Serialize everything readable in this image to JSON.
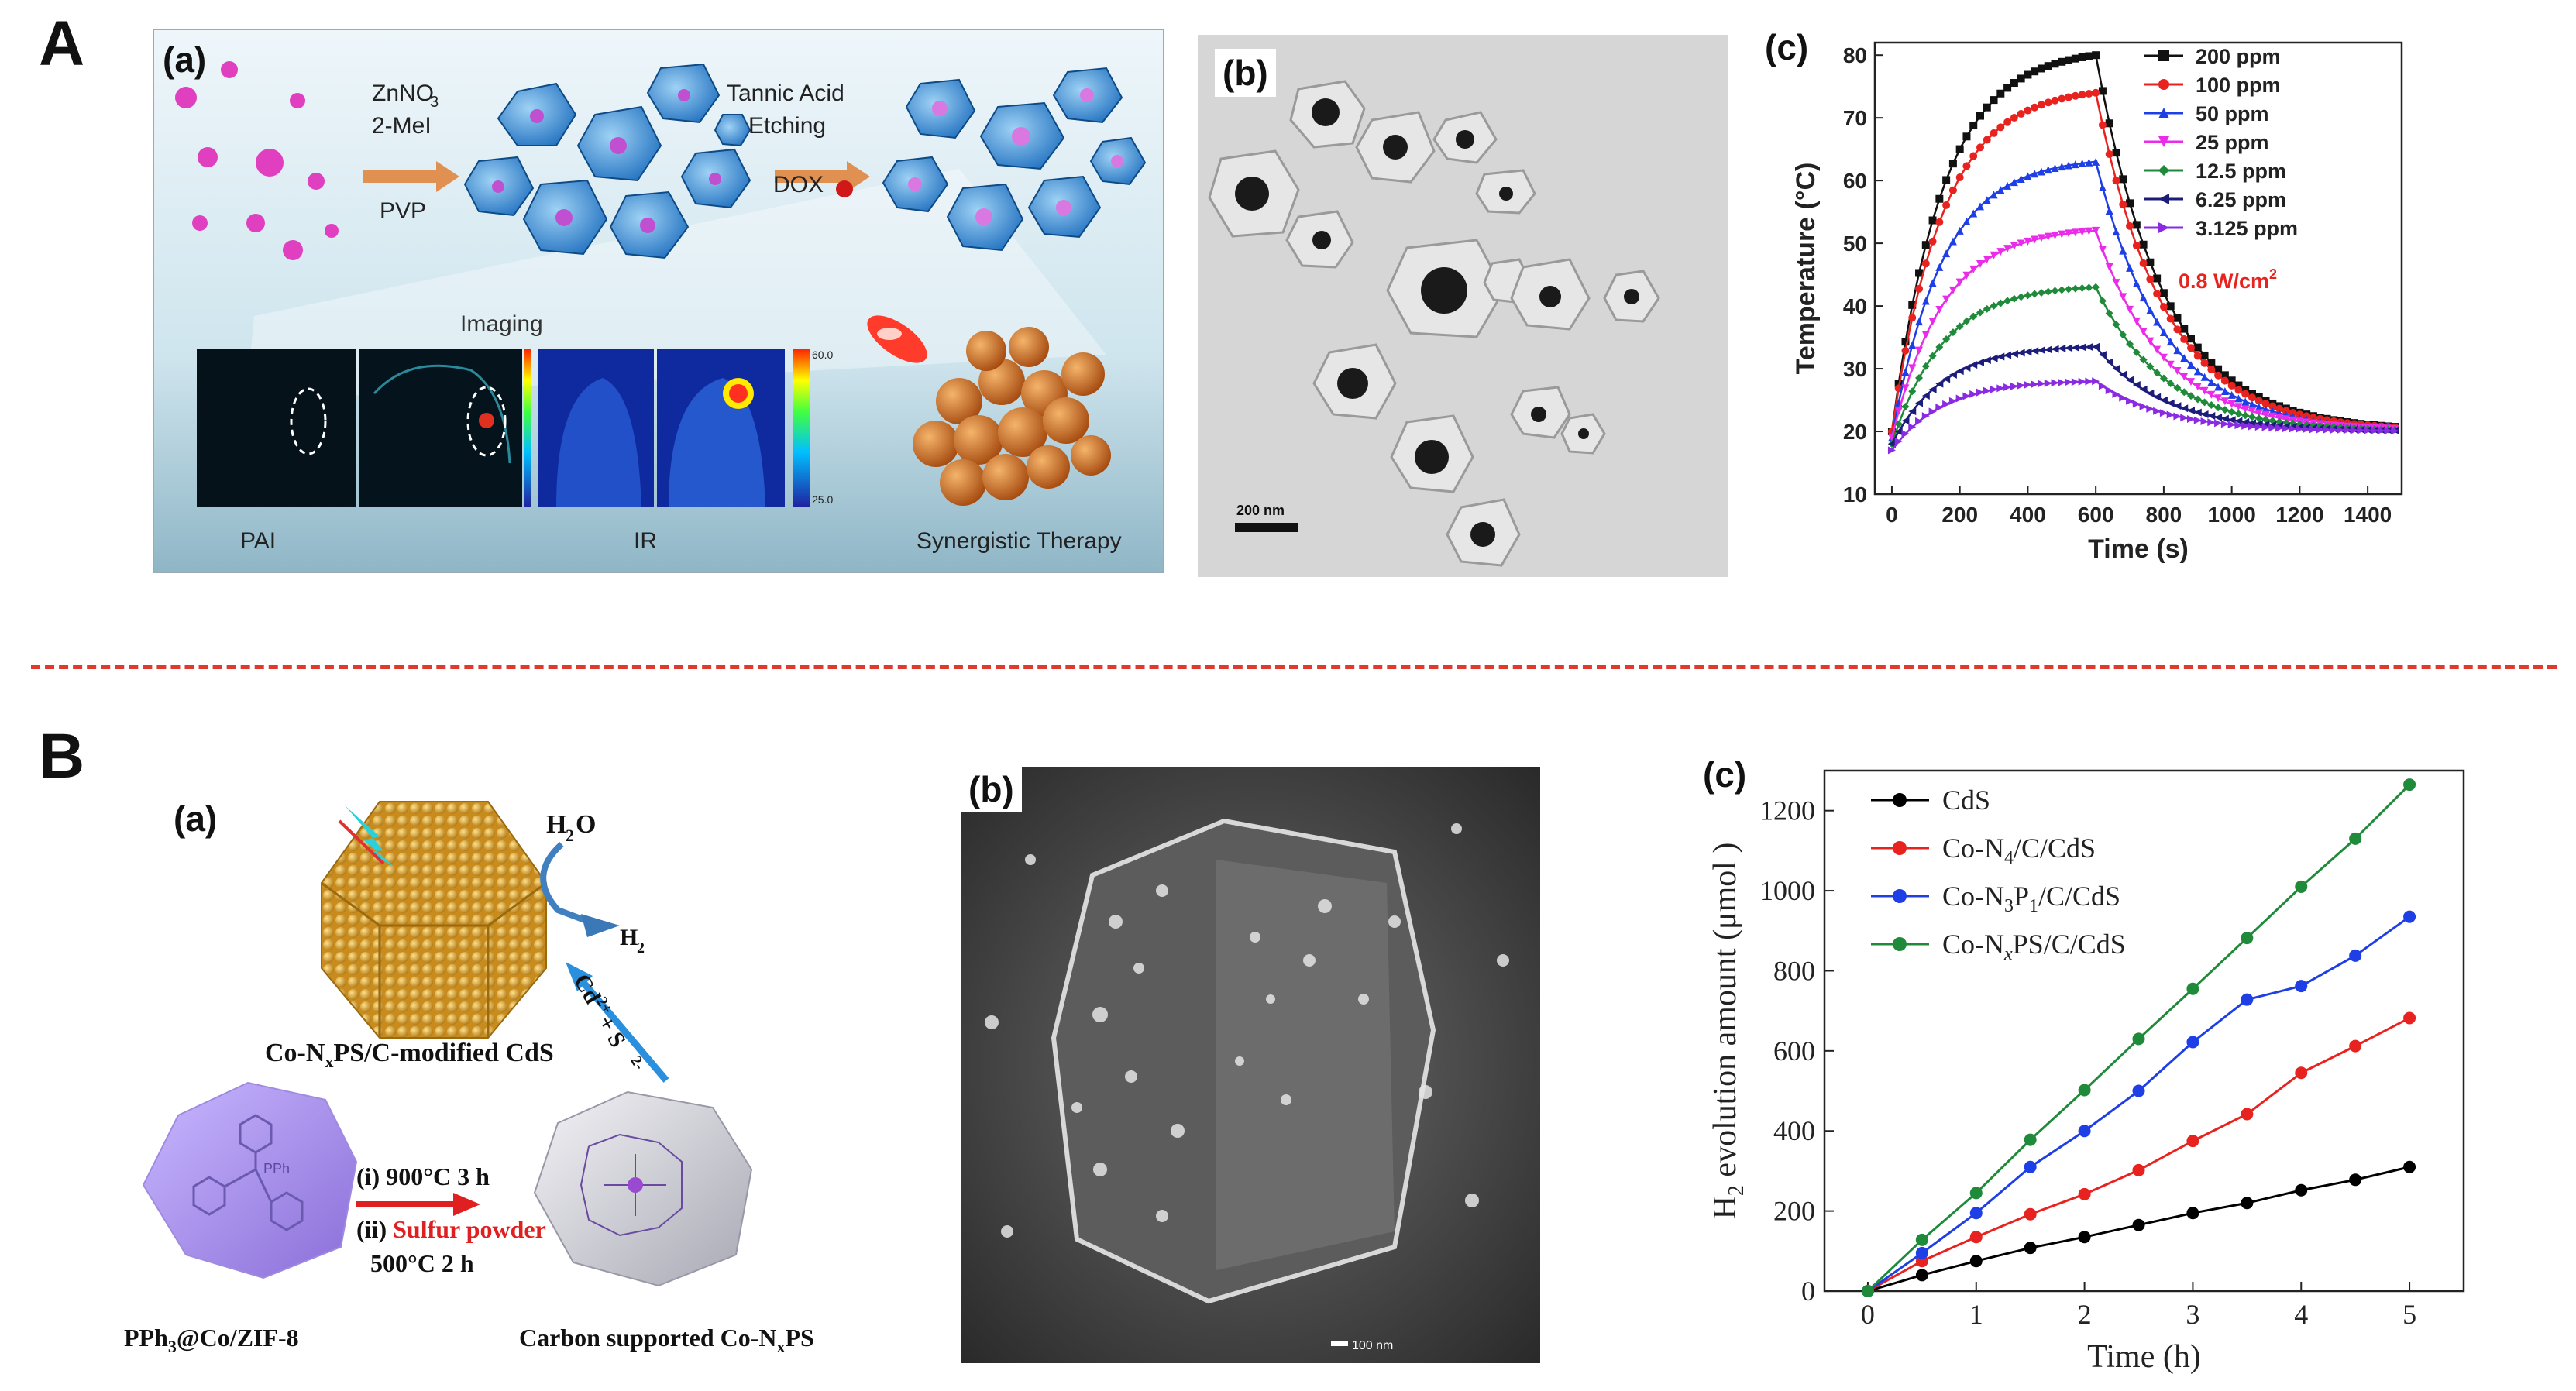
{
  "section_A": {
    "letter": "A",
    "panel_a": {
      "label": "(a)",
      "step1_line1": "ZnNO",
      "step1_sub": "3",
      "step1_line2": "2-MeI",
      "step1_line3": "PVP",
      "step2_line1": "Tannic Acid",
      "step2_line2": "Etching",
      "step2_line3": "DOX",
      "imaging": "Imaging",
      "pai": "PAI",
      "ir": "IR",
      "therapy": "Synergistic Therapy",
      "scale_top": "60.0",
      "scale_bottom": "25.0"
    },
    "panel_b": {
      "label": "(b)",
      "scalebar": "200 nm"
    },
    "panel_c": {
      "label": "(c)",
      "power": "0.8 W/cm",
      "power_sup": "2"
    }
  },
  "section_B": {
    "letter": "B",
    "panel_a": {
      "label": "(a)",
      "h2o": "H",
      "h2o_sub": "2",
      "h2o_tail": "O",
      "h2": "H",
      "h2_sub": "2",
      "ions": "Cd",
      "ions_sup": "2+",
      "ions_mid": " + S",
      "ions_sup2": "2-",
      "top_caption_pre": "Co-N",
      "top_caption_sub": "x",
      "top_caption_post": "PS/C-modified CdS",
      "ppph3": "PPh",
      "step_i": "(i) 900°C  3 h",
      "step_ii_pre": "(ii) ",
      "step_ii_red": "Sulfur powder",
      "step_ii_post": "500°C  2 h",
      "left_caption_pre": "PPh",
      "left_caption_sub": "3",
      "left_caption_post": "@Co/ZIF-8",
      "right_caption_pre": "Carbon supported Co-N",
      "right_caption_sub": "x",
      "right_caption_post": "PS"
    },
    "panel_b": {
      "label": "(b)",
      "scalebar": "100 nm"
    },
    "panel_c": {
      "label": "(c)"
    }
  },
  "chart_data": [
    {
      "type": "line",
      "panel": "A(c)",
      "xlabel": "Time (s)",
      "ylabel": "Temperature (°C)",
      "xlim": [
        -50,
        1500
      ],
      "ylim": [
        10,
        82
      ],
      "xticks": [
        0,
        200,
        400,
        600,
        800,
        1000,
        1200,
        1400
      ],
      "yticks": [
        10,
        20,
        30,
        40,
        50,
        60,
        70,
        80
      ],
      "legend_position": "top-right",
      "series": [
        {
          "name": "200 ppm",
          "color": "#111111",
          "marker": "square",
          "peak": 80,
          "start": 20
        },
        {
          "name": "100 ppm",
          "color": "#e8231f",
          "marker": "circle",
          "peak": 74,
          "start": 20
        },
        {
          "name": "50 ppm",
          "color": "#1f3fe6",
          "marker": "triangle-up",
          "peak": 63,
          "start": 19
        },
        {
          "name": "25 ppm",
          "color": "#ea2bea",
          "marker": "triangle-down",
          "peak": 52,
          "start": 19
        },
        {
          "name": "12.5 ppm",
          "color": "#1f8a3a",
          "marker": "diamond",
          "peak": 43,
          "start": 18
        },
        {
          "name": "6.25 ppm",
          "color": "#1c1c7a",
          "marker": "triangle-left",
          "peak": 33.5,
          "start": 18
        },
        {
          "name": "3.125 ppm",
          "color": "#8a2be2",
          "marker": "triangle-right",
          "peak": 28,
          "start": 17
        }
      ],
      "heating_end_s": 600,
      "end_temperature": 20
    },
    {
      "type": "line",
      "panel": "B(c)",
      "xlabel": "Time (h)",
      "ylabel": "evolution amount (μmol )",
      "ylabel_prefix": "H",
      "ylabel_sub": "2",
      "xlim": [
        -0.4,
        5.5
      ],
      "ylim": [
        0,
        1300
      ],
      "xticks": [
        0,
        1,
        2,
        3,
        4,
        5
      ],
      "yticks": [
        0,
        200,
        400,
        600,
        800,
        1000,
        1200
      ],
      "legend_position": "top-left",
      "x": [
        0,
        0.5,
        1,
        1.5,
        2,
        2.5,
        3,
        3.5,
        4,
        4.5,
        5
      ],
      "series": [
        {
          "name": "CdS",
          "color": "#000000",
          "values": [
            0,
            40,
            75,
            108,
            135,
            165,
            195,
            220,
            252,
            278,
            310
          ]
        },
        {
          "name": "Co-N4/C/CdS",
          "label_parts": [
            "Co-N",
            "4",
            "/C/CdS"
          ],
          "color": "#e8231f",
          "values": [
            0,
            75,
            135,
            192,
            242,
            302,
            375,
            442,
            545,
            612,
            682
          ]
        },
        {
          "name": "Co-N3P1/C/CdS",
          "label_parts": [
            "Co-N",
            "3",
            "P",
            "1",
            "/C/CdS"
          ],
          "color": "#1f3fe6",
          "values": [
            0,
            95,
            195,
            310,
            400,
            500,
            622,
            728,
            762,
            838,
            935
          ]
        },
        {
          "name": "Co-NxPS/C/CdS",
          "label_parts": [
            "Co-N",
            "x",
            "PS/C/CdS"
          ],
          "color": "#1f8a3a",
          "values": [
            0,
            128,
            245,
            378,
            502,
            630,
            755,
            882,
            1010,
            1130,
            1265
          ]
        }
      ]
    }
  ]
}
